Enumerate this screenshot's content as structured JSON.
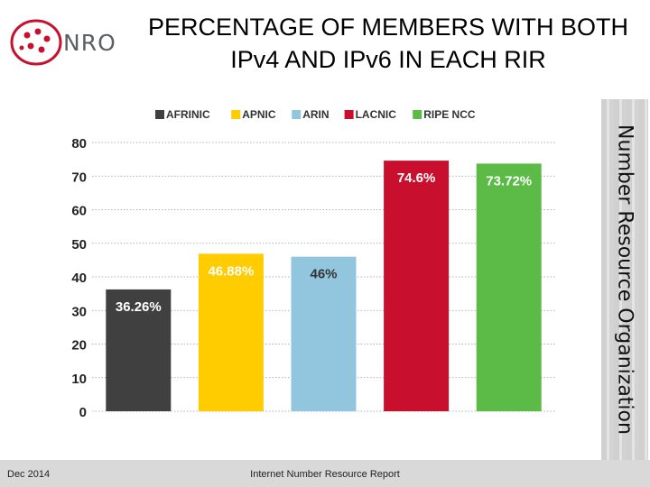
{
  "header": {
    "logo_text": "NRO",
    "title_line1": "PERCENTAGE OF MEMBERS WITH BOTH",
    "title_line2": "IPv4 AND IPv6 IN EACH RIR"
  },
  "side_banner": {
    "text": "Number Resource Organization"
  },
  "footer": {
    "date": "Dec 2014",
    "report": "Internet Number Resource Report"
  },
  "chart_data": {
    "type": "bar",
    "title": "",
    "xlabel": "",
    "ylabel": "",
    "ylim": [
      0,
      80
    ],
    "yticks": [
      0,
      10,
      20,
      30,
      40,
      50,
      60,
      70,
      80
    ],
    "grid": true,
    "legend_position": "top",
    "categories": [
      "AFRINIC",
      "APNIC",
      "ARIN",
      "LACNIC",
      "RIPE NCC"
    ],
    "values": [
      36.26,
      46.88,
      46,
      74.6,
      73.72
    ],
    "data_labels": [
      "36.26%",
      "46.88%",
      "46%",
      "74.6%",
      "73.72%"
    ],
    "colors": [
      "#404040",
      "#ffcc00",
      "#92c5de",
      "#c8102e",
      "#5cbb47"
    ],
    "label_colors": [
      "#ffffff",
      "#ffffff",
      "#333333",
      "#ffffff",
      "#ffffff"
    ]
  }
}
